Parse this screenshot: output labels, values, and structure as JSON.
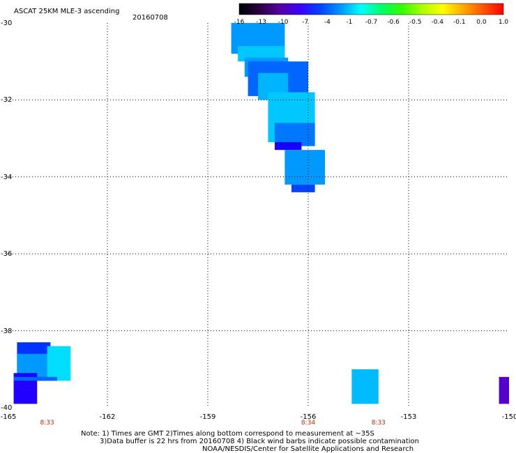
{
  "header": {
    "title": "ASCAT 25KM MLE-3 ascending",
    "date": "20160708"
  },
  "colorbar": {
    "labels": [
      "-16",
      "-13",
      "-10",
      "-7",
      "-4",
      "-1",
      "-0.7",
      "-0.6",
      "-0.5",
      "-0.4",
      "-0.1",
      "0.0",
      "1.0"
    ],
    "colors": [
      "#000000",
      "#2a0040",
      "#5500a0",
      "#3a00ff",
      "#0044ff",
      "#0099ff",
      "#00ffff",
      "#00ff66",
      "#33ff00",
      "#aaff00",
      "#ffff00",
      "#ffaa00",
      "#ff5500",
      "#ff0000"
    ]
  },
  "map": {
    "lat_labels": [
      "-30",
      "-32",
      "-34",
      "-36",
      "-38",
      "-40"
    ],
    "lon_labels": [
      "-165",
      "-162",
      "-159",
      "-156",
      "-153",
      "-150"
    ],
    "lon_range": [
      -165,
      -150
    ],
    "lat_range": [
      -30,
      -40
    ],
    "pass_times": [
      {
        "lon": -163.8,
        "label": "8:33"
      },
      {
        "lon": -156,
        "label": "8:34"
      },
      {
        "lon": -153.9,
        "label": "8:33"
      }
    ],
    "swaths": [
      {
        "lon": [
          -158.3,
          -156.7
        ],
        "lat": [
          -30.0,
          -30.8
        ],
        "color": "#0099ff"
      },
      {
        "lon": [
          -158.1,
          -156.7
        ],
        "lat": [
          -30.6,
          -31.0
        ],
        "color": "#00c8ff"
      },
      {
        "lon": [
          -157.9,
          -156.6
        ],
        "lat": [
          -30.9,
          -31.4
        ],
        "color": "#0099ff"
      },
      {
        "lon": [
          -157.8,
          -156.0
        ],
        "lat": [
          -31.0,
          -31.9
        ],
        "color": "#0066ff"
      },
      {
        "lon": [
          -157.5,
          -156.6
        ],
        "lat": [
          -31.3,
          -32.0
        ],
        "color": "#00b4ff"
      },
      {
        "lon": [
          -157.2,
          -155.8
        ],
        "lat": [
          -31.8,
          -33.1
        ],
        "color": "#00c8ff"
      },
      {
        "lon": [
          -157.0,
          -155.8
        ],
        "lat": [
          -32.6,
          -33.2
        ],
        "color": "#0077ff"
      },
      {
        "lon": [
          -157.0,
          -156.2
        ],
        "lat": [
          -33.1,
          -33.3
        ],
        "color": "#1a00ff"
      },
      {
        "lon": [
          -156.7,
          -155.5
        ],
        "lat": [
          -33.3,
          -34.2
        ],
        "color": "#0099ff"
      },
      {
        "lon": [
          -156.5,
          -155.8
        ],
        "lat": [
          -34.2,
          -34.4
        ],
        "color": "#0044ff"
      },
      {
        "lon": [
          -164.7,
          -163.7
        ],
        "lat": [
          -38.3,
          -39.3
        ],
        "color": "#0033ff"
      },
      {
        "lon": [
          -164.7,
          -163.4
        ],
        "lat": [
          -38.6,
          -39.2
        ],
        "color": "#0099ff"
      },
      {
        "lon": [
          -163.8,
          -163.1
        ],
        "lat": [
          -38.4,
          -39.3
        ],
        "color": "#00ddff"
      },
      {
        "lon": [
          -164.8,
          -164.1
        ],
        "lat": [
          -39.1,
          -39.9
        ],
        "color": "#2200ff"
      },
      {
        "lon": [
          -164.8,
          -163.5
        ],
        "lat": [
          -39.2,
          -39.3
        ],
        "color": "#0066ff"
      },
      {
        "lon": [
          -154.7,
          -153.9
        ],
        "lat": [
          -39.0,
          -39.9
        ],
        "color": "#00bbff"
      },
      {
        "lon": [
          -150.3,
          -150.0
        ],
        "lat": [
          -39.2,
          -39.9
        ],
        "color": "#5500cc"
      }
    ]
  },
  "notes": {
    "line1": "Note: 1) Times are GMT 2)Times along bottom correspond to measurement at ~35S",
    "line2": "3)Data buffer is 22 hrs from 20160708 4) Black wind barbs indicate possible contamination",
    "line3": "NOAA/NESDIS/Center for Satellite Applications and Research"
  }
}
